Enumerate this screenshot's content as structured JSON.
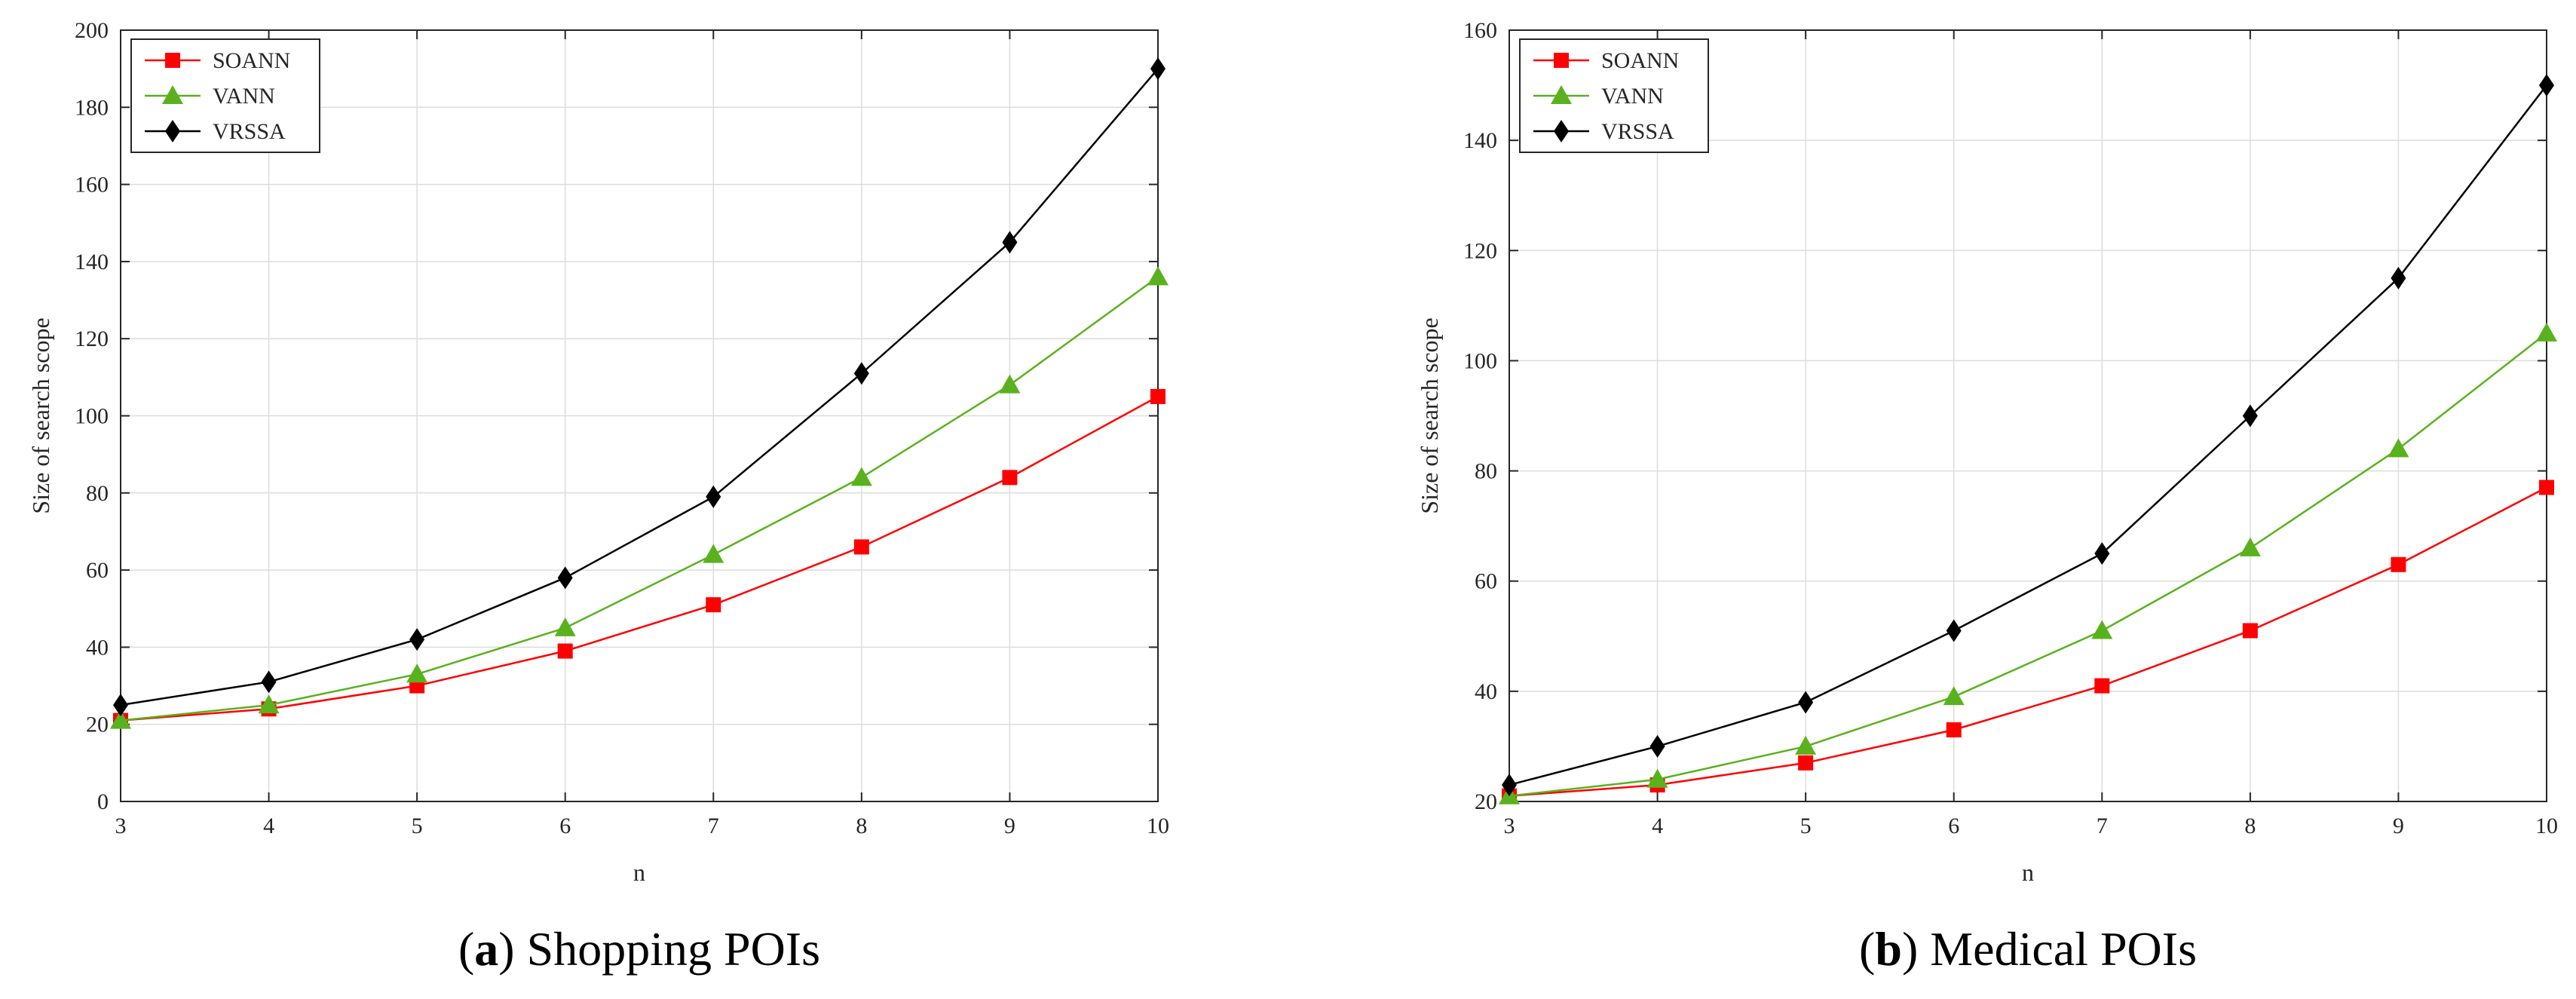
{
  "chart_data": [
    {
      "type": "line",
      "caption_label": "a",
      "caption_text": "Shopping POIs",
      "xlabel": "n",
      "ylabel": "Size of search scope",
      "x": [
        3,
        4,
        5,
        6,
        7,
        8,
        9,
        10
      ],
      "xlim": [
        3,
        10
      ],
      "ylim": [
        0,
        200
      ],
      "xticks": [
        3,
        4,
        5,
        6,
        7,
        8,
        9,
        10
      ],
      "yticks": [
        0,
        20,
        40,
        60,
        80,
        100,
        120,
        140,
        160,
        180,
        200
      ],
      "grid": true,
      "legend_position": "top-left",
      "series": [
        {
          "name": "SOANN",
          "color": "#ff0000",
          "marker": "square",
          "values": [
            21,
            24,
            30,
            39,
            51,
            66,
            84,
            105
          ]
        },
        {
          "name": "VANN",
          "color": "#59b21d",
          "marker": "triangle",
          "values": [
            21,
            25,
            33,
            45,
            64,
            84,
            108,
            136
          ]
        },
        {
          "name": "VRSSA",
          "color": "#000000",
          "marker": "diamond",
          "values": [
            25,
            31,
            42,
            58,
            79,
            111,
            145,
            190
          ]
        }
      ]
    },
    {
      "type": "line",
      "caption_label": "b",
      "caption_text": "Medical POIs",
      "xlabel": "n",
      "ylabel": "Size of search scope",
      "x": [
        3,
        4,
        5,
        6,
        7,
        8,
        9,
        10
      ],
      "xlim": [
        3,
        10
      ],
      "ylim": [
        20,
        160
      ],
      "xticks": [
        3,
        4,
        5,
        6,
        7,
        8,
        9,
        10
      ],
      "yticks": [
        20,
        40,
        60,
        80,
        100,
        120,
        140,
        160
      ],
      "grid": true,
      "legend_position": "top-left",
      "series": [
        {
          "name": "SOANN",
          "color": "#ff0000",
          "marker": "square",
          "values": [
            21,
            23,
            27,
            33,
            41,
            51,
            63,
            77
          ]
        },
        {
          "name": "VANN",
          "color": "#59b21d",
          "marker": "triangle",
          "values": [
            21,
            24,
            30,
            39,
            51,
            66,
            84,
            105
          ]
        },
        {
          "name": "VRSSA",
          "color": "#000000",
          "marker": "diamond",
          "values": [
            23,
            30,
            38,
            51,
            65,
            90,
            115,
            150
          ]
        }
      ]
    }
  ]
}
